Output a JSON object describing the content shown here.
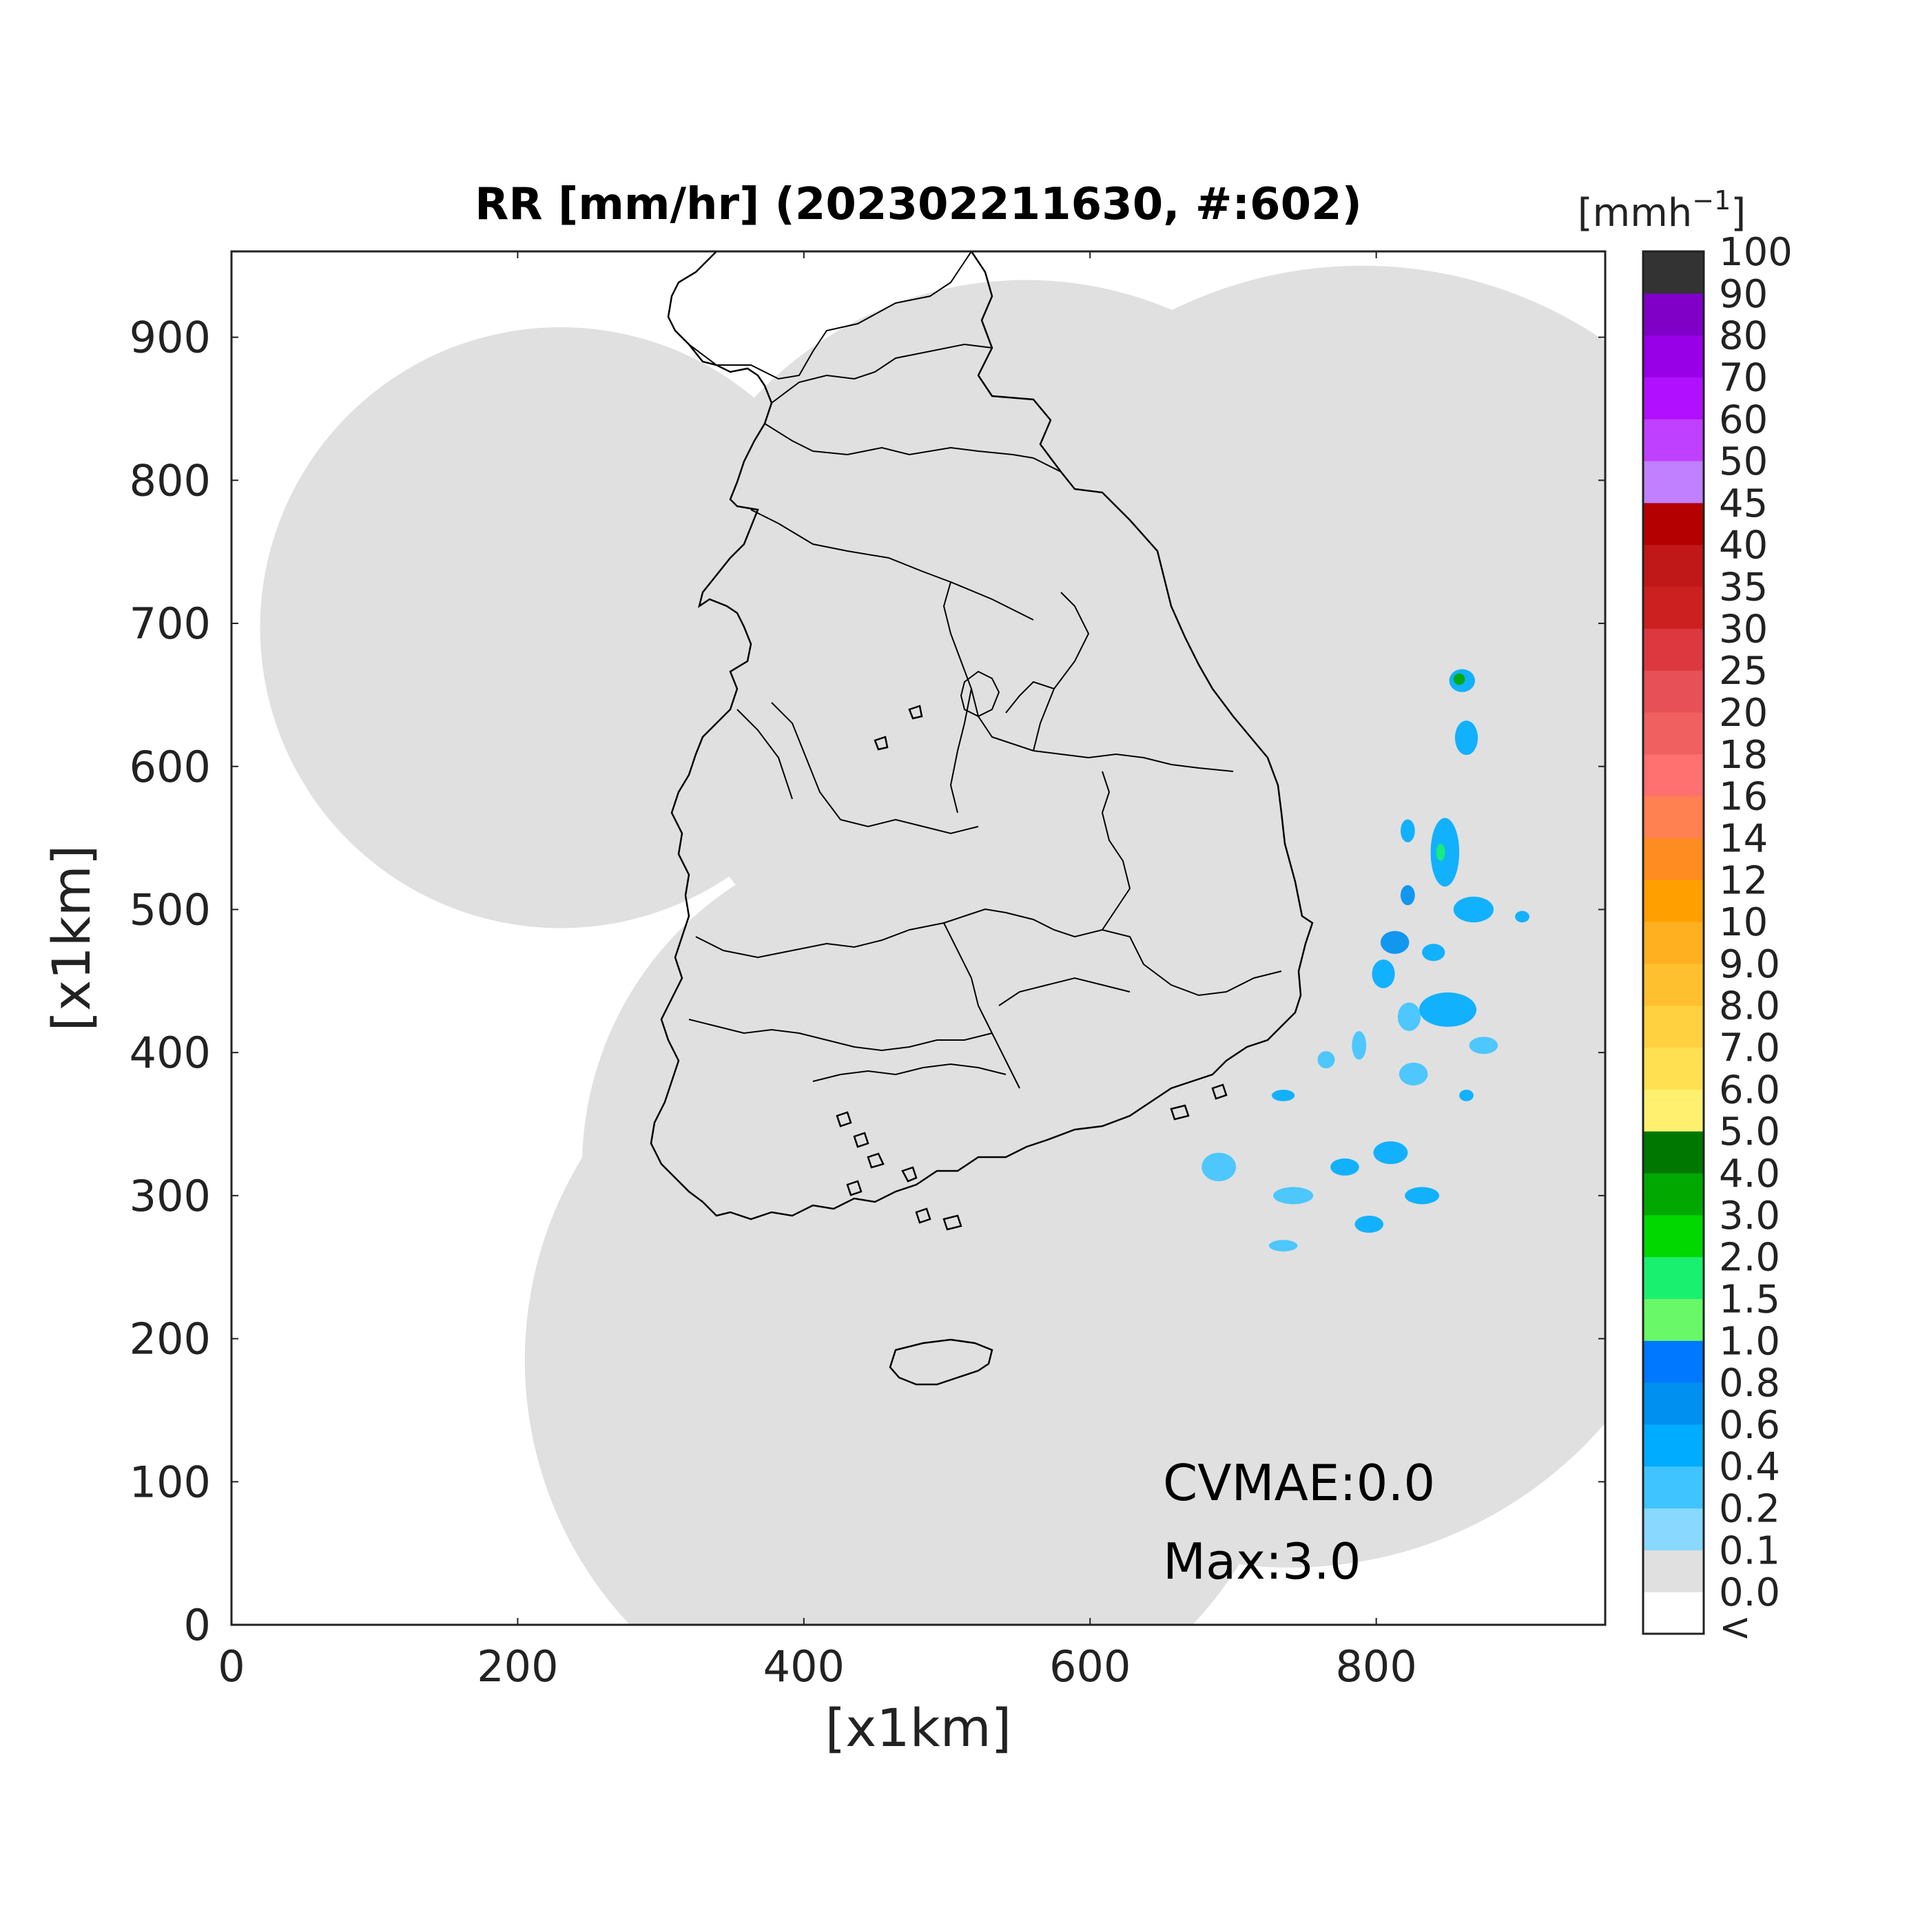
{
  "title": "RR [mm/hr] (202302211630, #:602)",
  "xlabel": "[x1km]",
  "ylabel": "[x1km]",
  "colorbar": {
    "unit_base": "[mmh",
    "unit_sup": "−1",
    "unit_close": "]",
    "levels": [
      {
        "label": "<",
        "color": "#ffffff"
      },
      {
        "label": "0.0",
        "color": "#e0e0e0"
      },
      {
        "label": "0.1",
        "color": "#88d8ff"
      },
      {
        "label": "0.2",
        "color": "#40c4ff"
      },
      {
        "label": "0.4",
        "color": "#00acff"
      },
      {
        "label": "0.6",
        "color": "#0090f0"
      },
      {
        "label": "0.8",
        "color": "#0078ff"
      },
      {
        "label": "1.0",
        "color": "#68f868"
      },
      {
        "label": "1.5",
        "color": "#1af070"
      },
      {
        "label": "2.0",
        "color": "#00d800"
      },
      {
        "label": "3.0",
        "color": "#00a800"
      },
      {
        "label": "4.0",
        "color": "#007800"
      },
      {
        "label": "5.0",
        "color": "#fff070"
      },
      {
        "label": "6.0",
        "color": "#ffe050"
      },
      {
        "label": "7.0",
        "color": "#ffd040"
      },
      {
        "label": "8.0",
        "color": "#ffc030"
      },
      {
        "label": "9.0",
        "color": "#ffb020"
      },
      {
        "label": "10",
        "color": "#ffa000"
      },
      {
        "label": "12",
        "color": "#ff8c20"
      },
      {
        "label": "14",
        "color": "#ff8050"
      },
      {
        "label": "16",
        "color": "#ff7070"
      },
      {
        "label": "18",
        "color": "#f06060"
      },
      {
        "label": "20",
        "color": "#e85058"
      },
      {
        "label": "25",
        "color": "#dd3840"
      },
      {
        "label": "30",
        "color": "#cc2020"
      },
      {
        "label": "35",
        "color": "#c01818"
      },
      {
        "label": "40",
        "color": "#b40000"
      },
      {
        "label": "45",
        "color": "#c080ff"
      },
      {
        "label": "50",
        "color": "#c040ff"
      },
      {
        "label": "60",
        "color": "#b010ff"
      },
      {
        "label": "70",
        "color": "#9800e8"
      },
      {
        "label": "80",
        "color": "#8000c8"
      },
      {
        "label": "90",
        "color": "#333333"
      }
    ],
    "top_label": "100"
  },
  "chart_data": {
    "type": "heatmap",
    "title": "RR [mm/hr] (202302211630, #:602)",
    "xlabel": "[x1km]",
    "ylabel": "[x1km]",
    "xlim": [
      0,
      960
    ],
    "ylim": [
      0,
      960
    ],
    "xticks": [
      0,
      200,
      400,
      600,
      800
    ],
    "yticks": [
      0,
      100,
      200,
      300,
      400,
      500,
      600,
      700,
      800,
      900
    ],
    "stats": {
      "CVMAE": "CVMAE:0.0",
      "Max": "Max:3.0"
    },
    "coverage_color": "#e0e0e0",
    "radar_coverage_circles": [
      {
        "cx": 230,
        "cy": 697,
        "r": 210
      },
      {
        "cx": 555,
        "cy": 680,
        "r": 260
      },
      {
        "cx": 790,
        "cy": 650,
        "r": 300
      },
      {
        "cx": 480,
        "cy": 320,
        "r": 235
      },
      {
        "cx": 740,
        "cy": 330,
        "r": 290
      },
      {
        "cx": 475,
        "cy": 185,
        "r": 270
      }
    ],
    "precip_cells": [
      {
        "x": 860,
        "y": 660,
        "rx": 9,
        "ry": 8,
        "v": 0.4
      },
      {
        "x": 858,
        "y": 661,
        "rx": 4,
        "ry": 4,
        "v": 3.0
      },
      {
        "x": 863,
        "y": 620,
        "rx": 8,
        "ry": 12,
        "v": 0.4
      },
      {
        "x": 848,
        "y": 540,
        "rx": 10,
        "ry": 24,
        "v": 0.4
      },
      {
        "x": 845,
        "y": 540,
        "rx": 3,
        "ry": 6,
        "v": 1.5
      },
      {
        "x": 822,
        "y": 555,
        "rx": 5,
        "ry": 8,
        "v": 0.4
      },
      {
        "x": 822,
        "y": 510,
        "rx": 5,
        "ry": 7,
        "v": 0.6
      },
      {
        "x": 868,
        "y": 500,
        "rx": 14,
        "ry": 9,
        "v": 0.4
      },
      {
        "x": 813,
        "y": 477,
        "rx": 10,
        "ry": 8,
        "v": 0.6
      },
      {
        "x": 805,
        "y": 455,
        "rx": 8,
        "ry": 10,
        "v": 0.4
      },
      {
        "x": 840,
        "y": 470,
        "rx": 8,
        "ry": 6,
        "v": 0.4
      },
      {
        "x": 850,
        "y": 430,
        "rx": 20,
        "ry": 12,
        "v": 0.4
      },
      {
        "x": 823,
        "y": 425,
        "rx": 8,
        "ry": 10,
        "v": 0.2
      },
      {
        "x": 875,
        "y": 405,
        "rx": 10,
        "ry": 6,
        "v": 0.2
      },
      {
        "x": 735,
        "y": 370,
        "rx": 8,
        "ry": 4,
        "v": 0.4
      },
      {
        "x": 765,
        "y": 395,
        "rx": 6,
        "ry": 6,
        "v": 0.2
      },
      {
        "x": 788,
        "y": 405,
        "rx": 5,
        "ry": 10,
        "v": 0.2
      },
      {
        "x": 810,
        "y": 330,
        "rx": 12,
        "ry": 8,
        "v": 0.4
      },
      {
        "x": 778,
        "y": 320,
        "rx": 10,
        "ry": 6,
        "v": 0.4
      },
      {
        "x": 742,
        "y": 300,
        "rx": 14,
        "ry": 6,
        "v": 0.2
      },
      {
        "x": 795,
        "y": 280,
        "rx": 10,
        "ry": 6,
        "v": 0.4
      },
      {
        "x": 832,
        "y": 300,
        "rx": 12,
        "ry": 6,
        "v": 0.4
      },
      {
        "x": 690,
        "y": 320,
        "rx": 12,
        "ry": 10,
        "v": 0.2
      },
      {
        "x": 735,
        "y": 265,
        "rx": 10,
        "ry": 4,
        "v": 0.2
      },
      {
        "x": 863,
        "y": 370,
        "rx": 5,
        "ry": 4,
        "v": 0.4
      },
      {
        "x": 902,
        "y": 495,
        "rx": 5,
        "ry": 4,
        "v": 0.4
      },
      {
        "x": 826,
        "y": 385,
        "rx": 10,
        "ry": 8,
        "v": 0.2
      }
    ]
  }
}
